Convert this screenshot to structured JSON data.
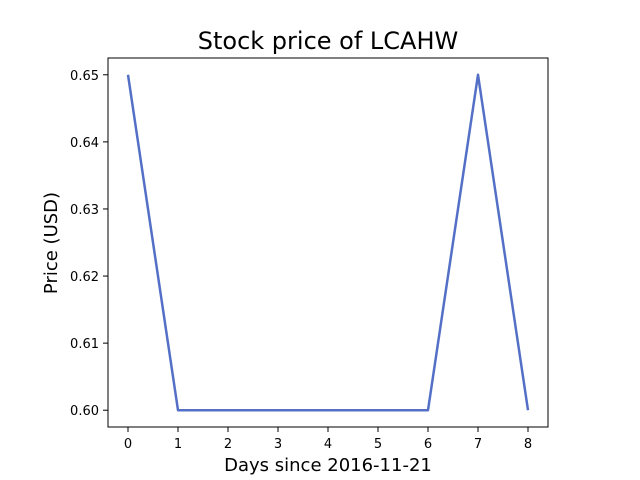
{
  "chart_data": {
    "type": "line",
    "title": "Stock price of LCAHW",
    "xlabel": "Days since 2016-11-21",
    "ylabel": "Price (USD)",
    "xlim": [
      -0.4,
      8.4
    ],
    "ylim": [
      0.5975,
      0.6525
    ],
    "x_ticks": [
      0,
      1,
      2,
      3,
      4,
      5,
      6,
      7,
      8
    ],
    "x_tick_labels": [
      "0",
      "1",
      "2",
      "3",
      "4",
      "5",
      "6",
      "7",
      "8"
    ],
    "y_ticks": [
      0.6,
      0.61,
      0.62,
      0.63,
      0.64,
      0.65
    ],
    "y_tick_labels": [
      "0.60",
      "0.61",
      "0.62",
      "0.63",
      "0.64",
      "0.65"
    ],
    "grid": false,
    "series": [
      {
        "color": "#5470c6",
        "x": [
          0,
          1,
          2,
          3,
          4,
          5,
          6,
          7,
          8
        ],
        "values": [
          0.65,
          0.6,
          0.6,
          0.6,
          0.6,
          0.6,
          0.6,
          0.65,
          0.6
        ]
      }
    ]
  }
}
